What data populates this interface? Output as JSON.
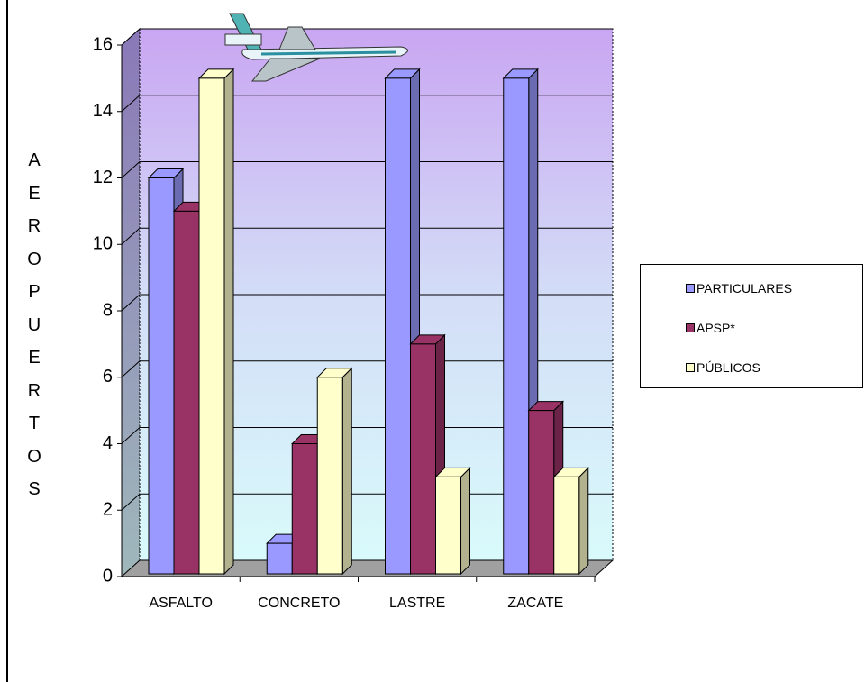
{
  "chart_data": {
    "type": "bar3d",
    "y_label": "AEROPUERTOS",
    "categories": [
      "ASFALTO",
      "CONCRETO",
      "LASTRE",
      "ZACATE"
    ],
    "series": [
      {
        "name": "PARTICULARES",
        "color": "#9999ff",
        "values": [
          12,
          1,
          15,
          15
        ]
      },
      {
        "name": "APSP*",
        "color": "#993366",
        "values": [
          11,
          4,
          7,
          5
        ]
      },
      {
        "name": "PÚBLICOS",
        "color": "#ffffcc",
        "values": [
          15,
          6,
          3,
          3
        ]
      }
    ],
    "ylim": [
      0,
      16
    ],
    "yticks": [
      0,
      2,
      4,
      6,
      8,
      10,
      12,
      14,
      16
    ],
    "grid": true
  }
}
